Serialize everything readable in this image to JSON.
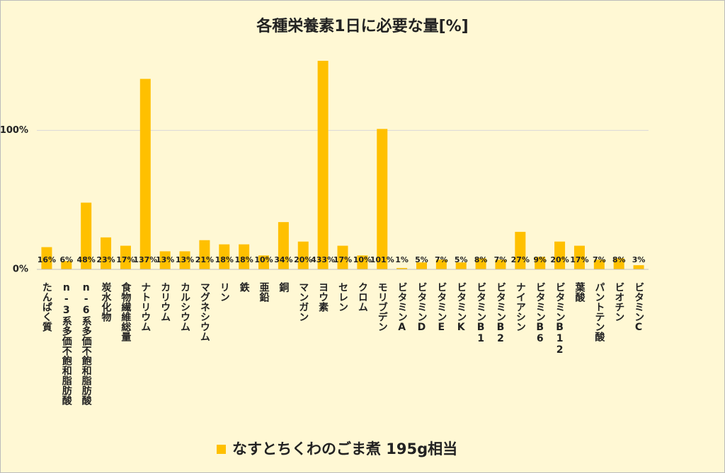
{
  "chart_data": {
    "type": "bar",
    "title": "各種栄養素1日に必要な量[%]",
    "categories": [
      "たんぱく質",
      "n-3系多価不飽和脂肪酸",
      "n-6系多価不飽和脂肪酸",
      "炭水化物",
      "食物繊維総量",
      "ナトリウム",
      "カリウム",
      "カルシウム",
      "マグネシウム",
      "リン",
      "鉄",
      "亜鉛",
      "銅",
      "マンガン",
      "ヨウ素",
      "セレン",
      "クロム",
      "モリブデン",
      "ビタミンA",
      "ビタミンD",
      "ビタミンE",
      "ビタミンK",
      "ビタミンB1",
      "ビタミンB2",
      "ナイアシン",
      "ビタミンB6",
      "ビタミンB12",
      "葉酸",
      "パントテン酸",
      "ビオチン",
      "ビタミンC"
    ],
    "series": [
      {
        "name": "なすとちくわのごま煮 195g相当",
        "color": "#ffc000",
        "values": [
          16,
          6,
          48,
          23,
          17,
          137,
          13,
          13,
          21,
          18,
          18,
          10,
          34,
          20,
          433,
          17,
          10,
          101,
          1,
          5,
          7,
          5,
          8,
          7,
          27,
          9,
          20,
          17,
          7,
          8,
          3
        ],
        "value_labels": [
          "16%",
          "6%",
          "48%",
          "23%",
          "17%",
          "137%",
          "13%",
          "13%",
          "21%",
          "18%",
          "18%",
          "10%",
          "34%",
          "20%",
          "433%",
          "17%",
          "10%",
          "101%",
          "1%",
          "5%",
          "7%",
          "5%",
          "8%",
          "7%",
          "27%",
          "9%",
          "20%",
          "17%",
          "7%",
          "8%",
          "3%"
        ]
      }
    ],
    "ylim": [
      0,
      150
    ],
    "yticks": [
      {
        "value": 0,
        "label": "0%"
      },
      {
        "value": 100,
        "label": "100%"
      }
    ],
    "grid": true,
    "legend": "bottom"
  }
}
